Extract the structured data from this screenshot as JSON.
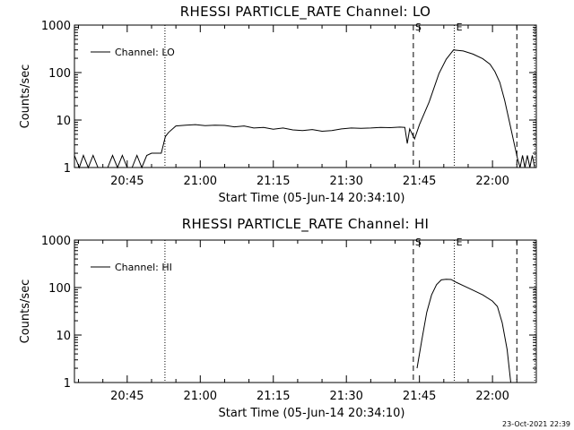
{
  "chart_data": [
    {
      "type": "line",
      "title": "RHESSI PARTICLE_RATE Channel: LO",
      "xlabel": "Start Time (05-Jun-14 20:34:10)",
      "ylabel": "Counts/sec",
      "y_scale": "log",
      "ylim": [
        1,
        1000
      ],
      "xlim": [
        "20:34:10",
        "22:09:00"
      ],
      "x_ticks": [
        "20:45",
        "21:00",
        "21:15",
        "21:30",
        "21:45",
        "22:00"
      ],
      "y_ticks": [
        "1",
        "10",
        "100",
        "1000"
      ],
      "grid": false,
      "legend": {
        "position": "top-left",
        "entries": [
          "Channel: LO"
        ]
      },
      "markers": [
        {
          "label": "S",
          "time": "21:43:45",
          "style": "dashed"
        },
        {
          "label": "E",
          "time": "21:52:10",
          "style": "dotted"
        }
      ],
      "vlines": [
        {
          "time": "20:52:45",
          "style": "dotted"
        },
        {
          "time": "22:05:00",
          "style": "dashed"
        },
        {
          "time": "22:08:40",
          "style": "dotted"
        }
      ],
      "series": [
        {
          "name": "Channel: LO",
          "x": [
            "20:34:10",
            "20:35:10",
            "20:36:00",
            "20:37:00",
            "20:38:00",
            "20:39:00",
            "20:40:00",
            "20:41:00",
            "20:42:00",
            "20:43:00",
            "20:44:00",
            "20:45:00",
            "20:46:00",
            "20:47:00",
            "20:48:00",
            "20:49:00",
            "20:50:00",
            "20:51:00",
            "20:52:00",
            "20:52:50",
            "20:53:30",
            "20:55:00",
            "20:57:00",
            "20:59:00",
            "21:01:00",
            "21:03:00",
            "21:05:00",
            "21:07:00",
            "21:09:00",
            "21:11:00",
            "21:13:00",
            "21:15:00",
            "21:17:00",
            "21:19:00",
            "21:21:00",
            "21:23:00",
            "21:25:00",
            "21:27:00",
            "21:29:00",
            "21:31:00",
            "21:33:00",
            "21:35:00",
            "21:37:00",
            "21:39:00",
            "21:41:00",
            "21:42:00",
            "21:42:30",
            "21:43:00",
            "21:44:00",
            "21:45:00",
            "21:47:00",
            "21:49:00",
            "21:50:30",
            "21:52:00",
            "21:54:00",
            "21:56:00",
            "21:58:00",
            "21:59:30",
            "22:00:30",
            "22:01:30",
            "22:02:30",
            "22:03:30",
            "22:04:30",
            "22:05:10",
            "22:05:40",
            "22:06:10",
            "22:06:40",
            "22:07:10",
            "22:07:40",
            "22:08:10",
            "22:08:40"
          ],
          "y": [
            1.8,
            1,
            1.8,
            1,
            1.8,
            1,
            1,
            1,
            1.8,
            1,
            1.8,
            1,
            1,
            1.8,
            1,
            1.8,
            2,
            2,
            2,
            4.5,
            5.5,
            7.5,
            7.8,
            8,
            7.6,
            7.8,
            7.7,
            7.2,
            7.5,
            6.8,
            7,
            6.4,
            6.8,
            6.2,
            6,
            6.3,
            5.8,
            6,
            6.5,
            6.8,
            6.7,
            6.8,
            7,
            6.9,
            7.1,
            7,
            3.2,
            6.5,
            4,
            8,
            24,
            95,
            190,
            300,
            285,
            245,
            195,
            150,
            105,
            62,
            26,
            9,
            3,
            1.5,
            1,
            1.8,
            1,
            1.8,
            1,
            1.8,
            1
          ]
        }
      ]
    },
    {
      "type": "line",
      "title": "RHESSI PARTICLE_RATE Channel: HI",
      "xlabel": "Start Time (05-Jun-14 20:34:10)",
      "ylabel": "Counts/sec",
      "y_scale": "log",
      "ylim": [
        1,
        1000
      ],
      "xlim": [
        "20:34:10",
        "22:09:00"
      ],
      "x_ticks": [
        "20:45",
        "21:00",
        "21:15",
        "21:30",
        "21:45",
        "22:00"
      ],
      "y_ticks": [
        "1",
        "10",
        "100",
        "1000"
      ],
      "grid": false,
      "legend": {
        "position": "top-left",
        "entries": [
          "Channel: HI"
        ]
      },
      "markers": [
        {
          "label": "S",
          "time": "21:43:45",
          "style": "dashed"
        },
        {
          "label": "E",
          "time": "21:52:10",
          "style": "dotted"
        }
      ],
      "vlines": [
        {
          "time": "20:52:45",
          "style": "dotted"
        },
        {
          "time": "22:05:00",
          "style": "dashed"
        },
        {
          "time": "22:08:40",
          "style": "dotted"
        }
      ],
      "series": [
        {
          "name": "Channel: HI",
          "x": [
            "21:44:30",
            "21:45:30",
            "21:46:30",
            "21:47:30",
            "21:48:30",
            "21:49:30",
            "21:50:30",
            "21:51:30",
            "21:52:30",
            "21:54:00",
            "21:56:00",
            "21:58:00",
            "22:00:00",
            "22:01:00",
            "22:02:00",
            "22:03:00",
            "22:03:45"
          ],
          "y": [
            2,
            8,
            30,
            70,
            115,
            145,
            150,
            148,
            130,
            110,
            88,
            70,
            52,
            40,
            18,
            5,
            1
          ]
        }
      ]
    }
  ],
  "footer": {
    "timestamp": "23-Oct-2021 22:39"
  }
}
